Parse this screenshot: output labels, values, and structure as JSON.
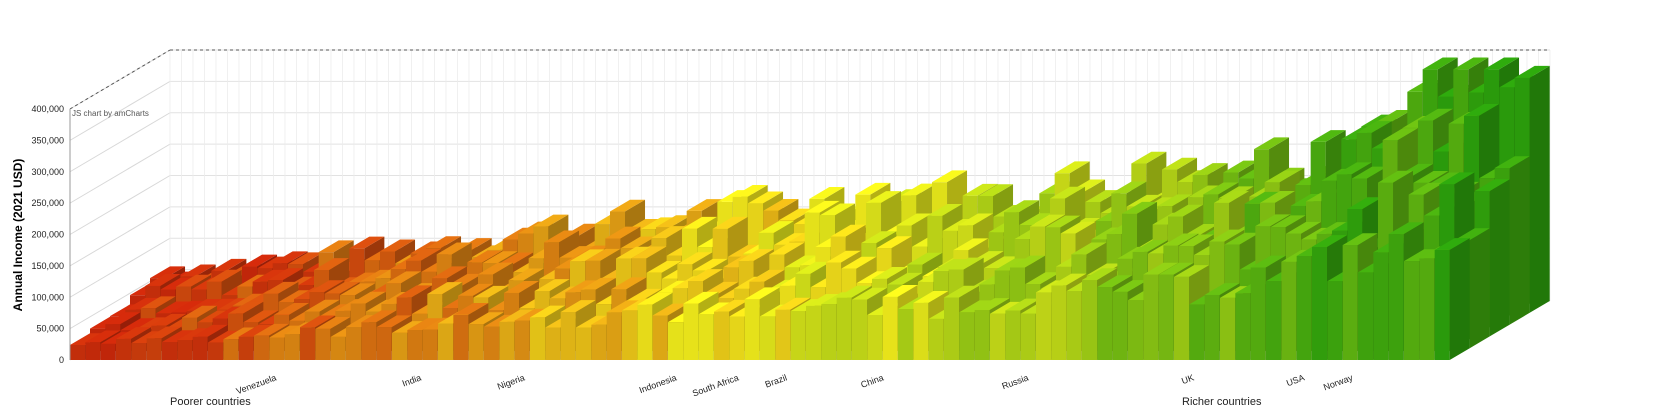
{
  "chart_data": {
    "type": "bar",
    "title": "",
    "ylabel": "Annual Income (2021 USD)",
    "xlabel": "",
    "ylim": [
      0,
      400000
    ],
    "yticks": [
      "0",
      "50,000",
      "100,000",
      "150,000",
      "200,000",
      "250,000",
      "300,000",
      "350,000",
      "400,000"
    ],
    "credit": "JS chart by amCharts",
    "group_labels": {
      "left": "Poorer countries",
      "right": "Richer countries"
    },
    "grid": true,
    "countries": [
      {
        "name": "Venezuela",
        "peak": 92000
      },
      {
        "name": "India",
        "peak": 128000
      },
      {
        "name": "Nigeria",
        "peak": 142000
      },
      {
        "name": "Indonesia",
        "peak": 170000
      },
      {
        "name": "South Africa",
        "peak": 182000
      },
      {
        "name": "Brazil",
        "peak": 200000
      },
      {
        "name": "China",
        "peak": 183000
      },
      {
        "name": "Russia",
        "peak": 220000
      },
      {
        "name": "UK",
        "peak": 260000
      },
      {
        "name": "USA",
        "peak": 330000
      },
      {
        "name": "Norway",
        "peak": 380000
      }
    ],
    "color_scale": {
      "low": "#c0260a",
      "mid": "#e8e21a",
      "high": "#2a9a0c"
    }
  }
}
